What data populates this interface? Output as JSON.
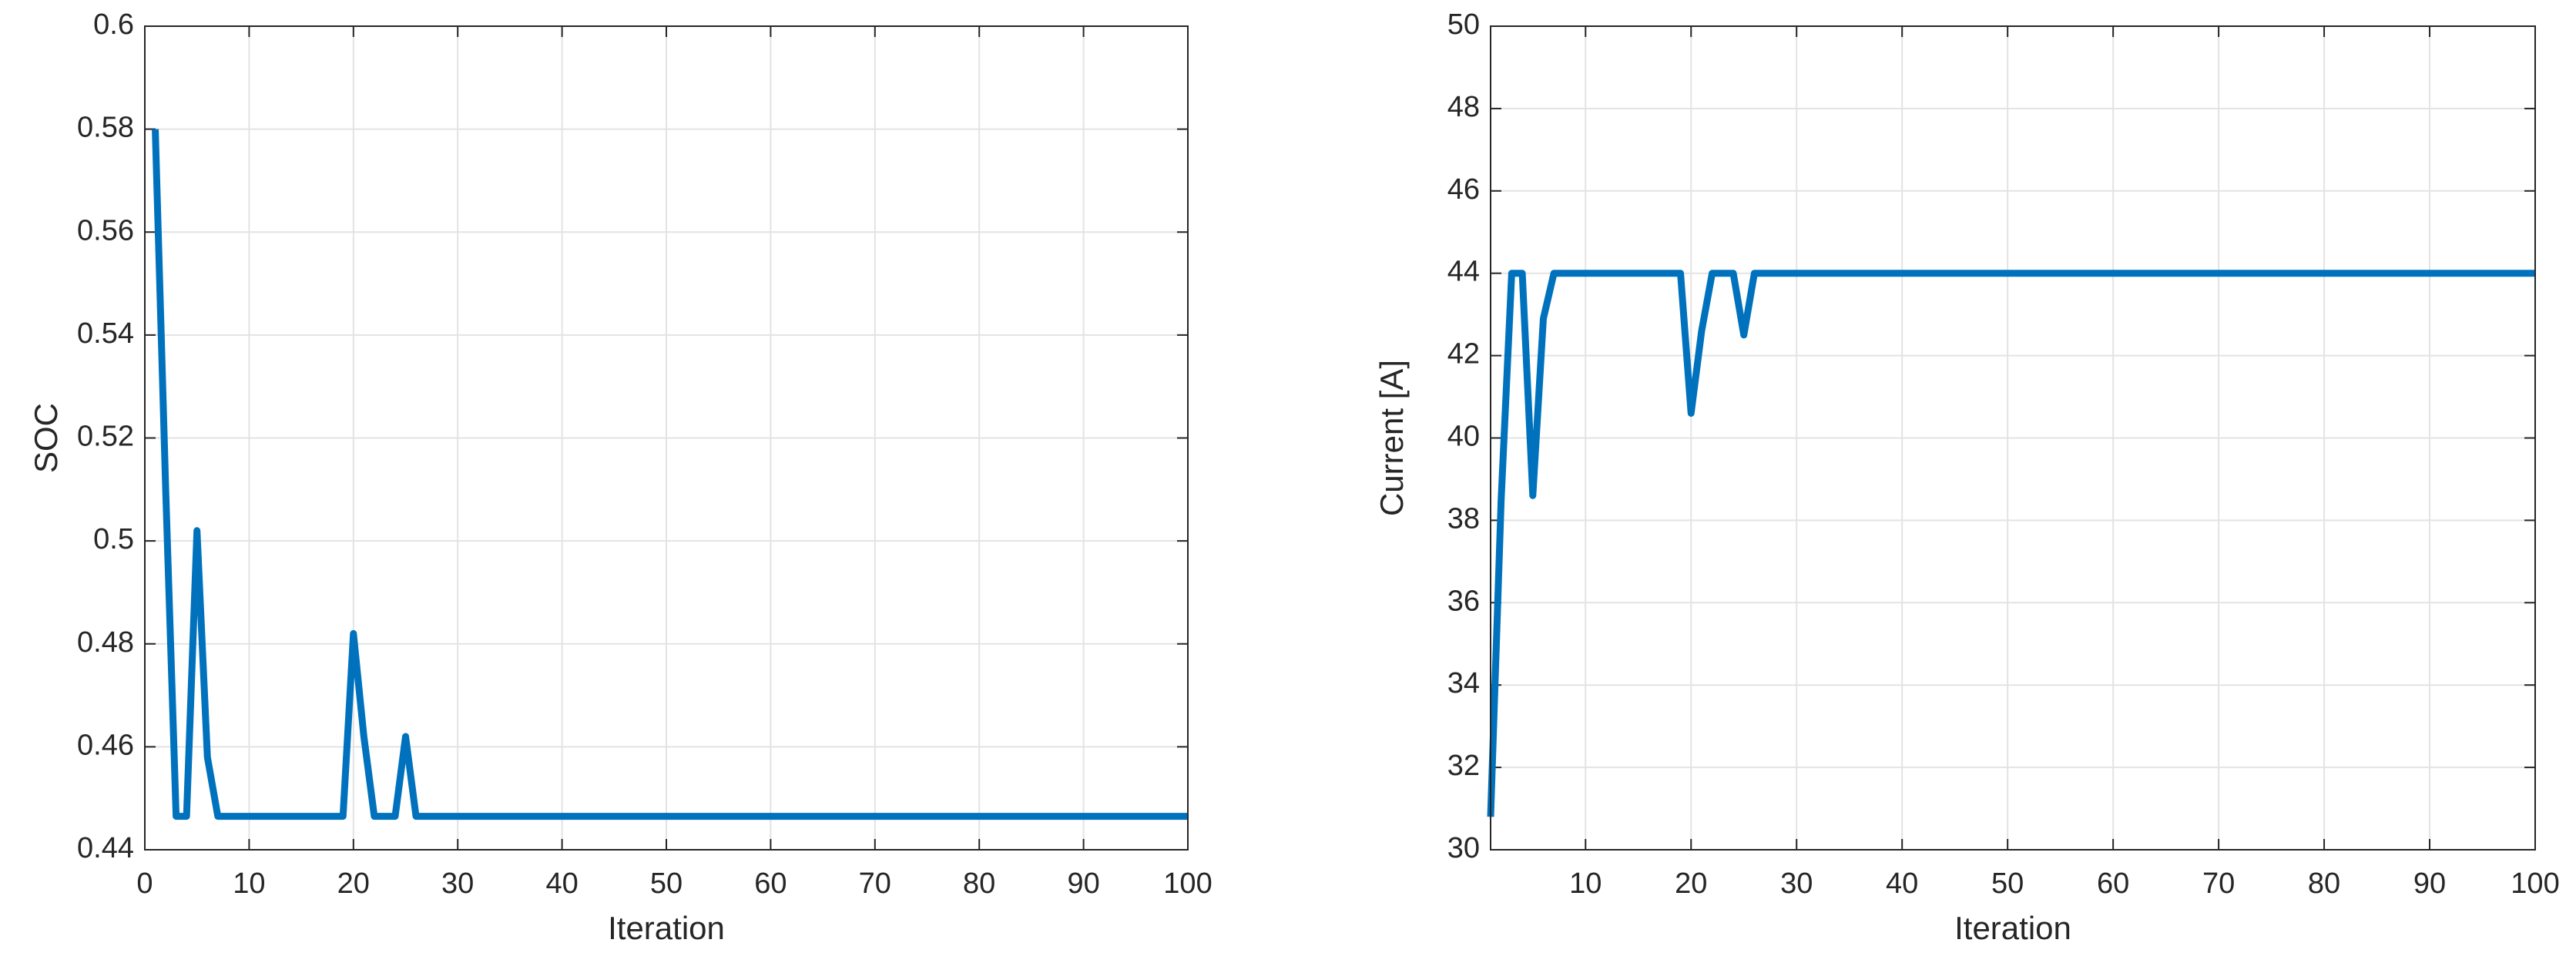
{
  "chart_data": [
    {
      "type": "line",
      "xlabel": "Iteration",
      "ylabel": "SOC",
      "color": "#0072bd",
      "grid": true,
      "xlim": [
        0,
        100
      ],
      "xticks": [
        0,
        10,
        20,
        30,
        40,
        50,
        60,
        70,
        80,
        90,
        100
      ],
      "ylim": [
        0.44,
        0.6
      ],
      "yticks": [
        0.44,
        0.46,
        0.48,
        0.5,
        0.52,
        0.54,
        0.56,
        0.58,
        0.6
      ],
      "x": [
        1,
        2,
        3,
        4,
        5,
        6,
        7,
        8,
        9,
        10,
        11,
        12,
        13,
        14,
        15,
        16,
        17,
        18,
        19,
        20,
        21,
        22,
        23,
        24,
        25,
        26,
        27,
        28,
        29,
        30,
        31,
        32,
        33,
        34,
        35,
        36,
        37,
        38,
        39,
        40,
        41,
        42,
        43,
        44,
        45,
        46,
        47,
        48,
        49,
        50,
        51,
        52,
        53,
        54,
        55,
        56,
        57,
        58,
        59,
        60,
        61,
        62,
        63,
        64,
        65,
        66,
        67,
        68,
        69,
        70,
        71,
        72,
        73,
        74,
        75,
        76,
        77,
        78,
        79,
        80,
        81,
        82,
        83,
        84,
        85,
        86,
        87,
        88,
        89,
        90,
        91,
        92,
        93,
        94,
        95,
        96,
        97,
        98,
        99,
        100
      ],
      "values": [
        0.58,
        0.51,
        0.4465,
        0.4465,
        0.502,
        0.458,
        0.4465,
        0.4465,
        0.4465,
        0.4465,
        0.4465,
        0.4465,
        0.4465,
        0.4465,
        0.4465,
        0.4465,
        0.4465,
        0.4465,
        0.4465,
        0.482,
        0.462,
        0.4465,
        0.4465,
        0.4465,
        0.462,
        0.4465,
        0.4465,
        0.4465,
        0.4465,
        0.4465,
        0.4465,
        0.4465,
        0.4465,
        0.4465,
        0.4465,
        0.4465,
        0.4465,
        0.4465,
        0.4465,
        0.4465,
        0.4465,
        0.4465,
        0.4465,
        0.4465,
        0.4465,
        0.4465,
        0.4465,
        0.4465,
        0.4465,
        0.4465,
        0.4465,
        0.4465,
        0.4465,
        0.4465,
        0.4465,
        0.4465,
        0.4465,
        0.4465,
        0.4465,
        0.4465,
        0.4465,
        0.4465,
        0.4465,
        0.4465,
        0.4465,
        0.4465,
        0.4465,
        0.4465,
        0.4465,
        0.4465,
        0.4465,
        0.4465,
        0.4465,
        0.4465,
        0.4465,
        0.4465,
        0.4465,
        0.4465,
        0.4465,
        0.4465,
        0.4465,
        0.4465,
        0.4465,
        0.4465,
        0.4465,
        0.4465,
        0.4465,
        0.4465,
        0.4465,
        0.4465,
        0.4465,
        0.4465,
        0.4465,
        0.4465,
        0.4465,
        0.4465,
        0.4465,
        0.4465,
        0.4465,
        0.4465
      ]
    },
    {
      "type": "line",
      "xlabel": "Iteration",
      "ylabel": "Current [A]",
      "color": "#0072bd",
      "grid": true,
      "xlim": [
        1,
        100
      ],
      "xticks": [
        10,
        20,
        30,
        40,
        50,
        60,
        70,
        80,
        90,
        100
      ],
      "ylim": [
        30,
        50
      ],
      "yticks": [
        30,
        32,
        34,
        36,
        38,
        40,
        42,
        44,
        46,
        48,
        50
      ],
      "x": [
        1,
        2,
        3,
        4,
        5,
        6,
        7,
        8,
        9,
        10,
        11,
        12,
        13,
        14,
        15,
        16,
        17,
        18,
        19,
        20,
        21,
        22,
        23,
        24,
        25,
        26,
        27,
        28,
        29,
        30,
        31,
        32,
        33,
        34,
        35,
        36,
        37,
        38,
        39,
        40,
        41,
        42,
        43,
        44,
        45,
        46,
        47,
        48,
        49,
        50,
        51,
        52,
        53,
        54,
        55,
        56,
        57,
        58,
        59,
        60,
        61,
        62,
        63,
        64,
        65,
        66,
        67,
        68,
        69,
        70,
        71,
        72,
        73,
        74,
        75,
        76,
        77,
        78,
        79,
        80,
        81,
        82,
        83,
        84,
        85,
        86,
        87,
        88,
        89,
        90,
        91,
        92,
        93,
        94,
        95,
        96,
        97,
        98,
        99,
        100
      ],
      "values": [
        30.8,
        38.5,
        44,
        44,
        38.6,
        42.9,
        44,
        44,
        44,
        44,
        44,
        44,
        44,
        44,
        44,
        44,
        44,
        44,
        44,
        40.6,
        42.6,
        44,
        44,
        44,
        42.5,
        44,
        44,
        44,
        44,
        44,
        44,
        44,
        44,
        44,
        44,
        44,
        44,
        44,
        44,
        44,
        44,
        44,
        44,
        44,
        44,
        44,
        44,
        44,
        44,
        44,
        44,
        44,
        44,
        44,
        44,
        44,
        44,
        44,
        44,
        44,
        44,
        44,
        44,
        44,
        44,
        44,
        44,
        44,
        44,
        44,
        44,
        44,
        44,
        44,
        44,
        44,
        44,
        44,
        44,
        44,
        44,
        44,
        44,
        44,
        44,
        44,
        44,
        44,
        44,
        44,
        44,
        44,
        44,
        44,
        44,
        44,
        44,
        44,
        44,
        44
      ]
    }
  ]
}
